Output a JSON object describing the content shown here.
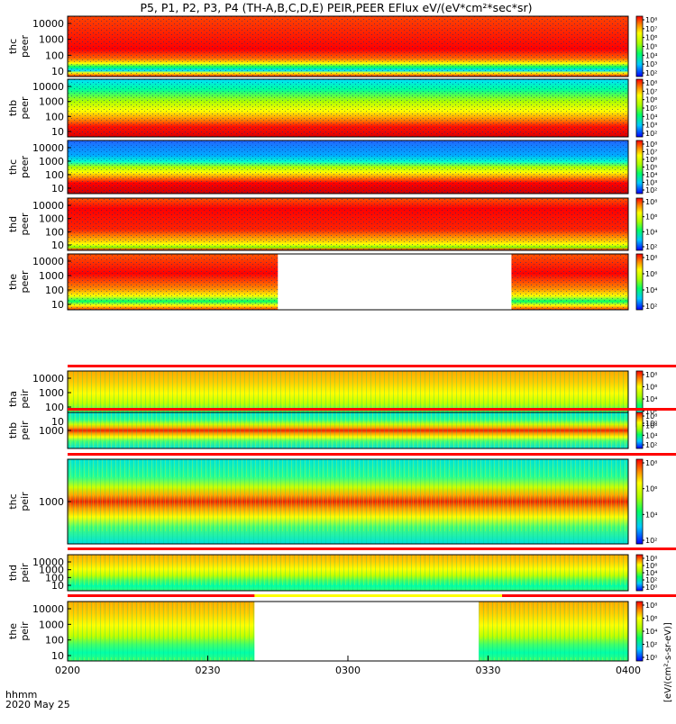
{
  "title": "P5, P1, P2, P3, P4 (TH-A,B,C,D,E) PEIR,PEER EFlux eV/(eV*cm²*sec*sr)",
  "time_label": "hhmm",
  "date_label": "2020 May 25",
  "x_ticks": [
    "0200",
    "0230",
    "0300",
    "0330",
    "0400"
  ],
  "colorbar_label": "[eV/(cm²-s-sr-eV)]",
  "colors": {
    "saturation_red": "#ff0000",
    "gap_white": "#ffffff",
    "flag_yellow": "#ffff00",
    "axis_black": "#000000"
  },
  "chart_data": {
    "type": "heatmap",
    "x_range": [
      "0200",
      "0400"
    ],
    "x_unit": "hhmm",
    "panels": [
      {
        "probe": "thc",
        "species": "peer",
        "label_probe": "thc",
        "label_species": "peer",
        "y_ticks": [
          "10000",
          "1000",
          "100",
          "10"
        ],
        "cbar_ticks": [
          "10⁸",
          "10⁷",
          "10⁶",
          "10⁵",
          "10⁴",
          "10³",
          "10²"
        ]
      },
      {
        "probe": "thb",
        "species": "peer",
        "label_probe": "thb",
        "label_species": "peer",
        "y_ticks": [
          "10000",
          "1000",
          "100",
          "10"
        ],
        "cbar_ticks": [
          "10⁸",
          "10⁷",
          "10⁶",
          "10⁵",
          "10⁴",
          "10³",
          "10²"
        ]
      },
      {
        "probe": "thc",
        "species": "peer",
        "label_probe": "thc",
        "label_species": "peer",
        "y_ticks": [
          "10000",
          "1000",
          "100",
          "10"
        ],
        "cbar_ticks": [
          "10⁸",
          "10⁷",
          "10⁶",
          "10⁵",
          "10⁴",
          "10³",
          "10²"
        ]
      },
      {
        "probe": "thd",
        "species": "peer",
        "label_probe": "thd",
        "label_species": "peer",
        "y_ticks": [
          "10000",
          "1000",
          "100",
          "10"
        ],
        "cbar_ticks": [
          "10⁸",
          "10⁶",
          "10⁴",
          "10²"
        ]
      },
      {
        "probe": "the",
        "species": "peer",
        "label_probe": "the",
        "label_species": "peer",
        "y_ticks": [
          "10000",
          "1000",
          "100",
          "10"
        ],
        "cbar_ticks": [
          "10⁸",
          "10⁶",
          "10⁴",
          "10²"
        ]
      },
      {
        "probe": "tha",
        "species": "peir",
        "label_probe": "tha",
        "label_species": "peir",
        "y_ticks": [
          "10000",
          "1000",
          "100",
          "10"
        ],
        "cbar_ticks": [
          "10⁸",
          "10⁶",
          "10⁴",
          "10²",
          "10⁰"
        ]
      },
      {
        "probe": "thb",
        "species": "peir",
        "label_probe": "thb",
        "label_species": "peir",
        "y_ticks": [
          "1000"
        ],
        "cbar_ticks": [
          "10⁸",
          "10⁶",
          "10⁴",
          "10²"
        ]
      },
      {
        "probe": "thc",
        "species": "peir",
        "label_probe": "thc",
        "label_species": "peir",
        "y_ticks": [
          "1000"
        ],
        "cbar_ticks": [
          "10⁸",
          "10⁶",
          "10⁴",
          "10²"
        ]
      },
      {
        "probe": "thd",
        "species": "peir",
        "label_probe": "thd",
        "label_species": "peir",
        "y_ticks": [
          "10000",
          "1000",
          "100",
          "10"
        ],
        "cbar_ticks": [
          "10⁸",
          "10⁶",
          "10⁴",
          "10²",
          "10⁰"
        ]
      },
      {
        "probe": "the",
        "species": "peir",
        "label_probe": "the",
        "label_species": "peir",
        "y_ticks": [
          "10000",
          "1000",
          "100",
          "10"
        ],
        "cbar_ticks": [
          "10⁸",
          "10⁶",
          "10⁴",
          "10²",
          "10⁰"
        ]
      }
    ],
    "data_gaps": [
      {
        "panel": 4,
        "start": "0245",
        "end": "0335"
      },
      {
        "panel": 9,
        "start": "0240",
        "end": "0328"
      }
    ]
  }
}
